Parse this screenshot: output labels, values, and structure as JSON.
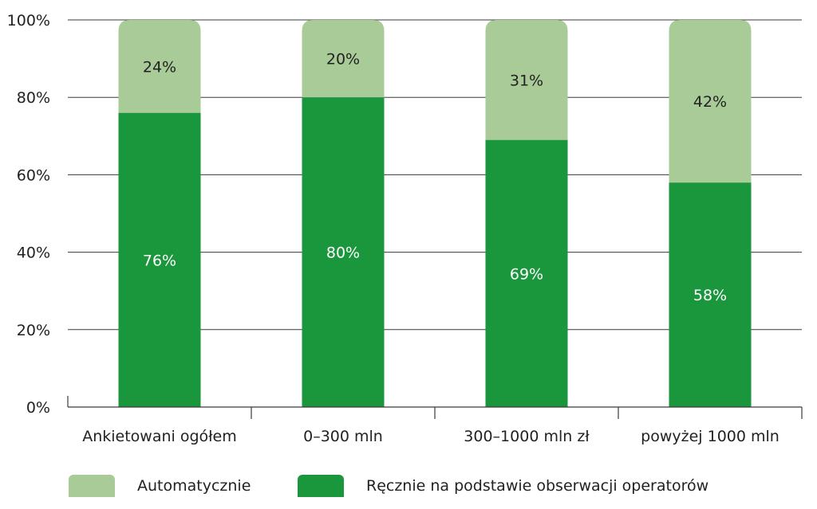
{
  "chart_data": {
    "type": "bar",
    "stacked": true,
    "percent": true,
    "categories": [
      "Ankietowani ogółem",
      "0–300 mln",
      "300–1000 mln zł",
      "powyżej 1000 mln"
    ],
    "series": [
      {
        "name": "Ręcznie na podstawie obserwacji operatorów",
        "values": [
          76,
          80,
          69,
          58
        ],
        "labels": [
          "76%",
          "80%",
          "69%",
          "58%"
        ],
        "color": "#1a963c"
      },
      {
        "name": "Automatycznie",
        "values": [
          24,
          20,
          31,
          42
        ],
        "labels": [
          "24%",
          "20%",
          "31%",
          "42%"
        ],
        "color": "#a8cb98"
      }
    ],
    "ylim": [
      0,
      100
    ],
    "yticks": [
      "0%",
      "20%",
      "40%",
      "60%",
      "80%",
      "100%"
    ],
    "grid": true,
    "legend_placement": "bottom"
  },
  "legend": {
    "items": [
      {
        "label": "Automatycznie",
        "color": "#a8cb98"
      },
      {
        "label": "Ręcznie na podstawie obserwacji operatorów",
        "color": "#1a963c"
      }
    ]
  }
}
